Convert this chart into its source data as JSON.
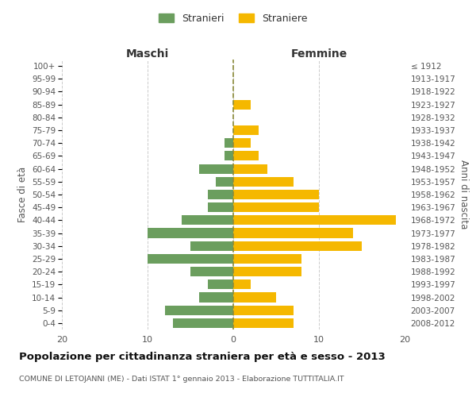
{
  "age_groups": [
    "0-4",
    "5-9",
    "10-14",
    "15-19",
    "20-24",
    "25-29",
    "30-34",
    "35-39",
    "40-44",
    "45-49",
    "50-54",
    "55-59",
    "60-64",
    "65-69",
    "70-74",
    "75-79",
    "80-84",
    "85-89",
    "90-94",
    "95-99",
    "100+"
  ],
  "birth_years": [
    "2008-2012",
    "2003-2007",
    "1998-2002",
    "1993-1997",
    "1988-1992",
    "1983-1987",
    "1978-1982",
    "1973-1977",
    "1968-1972",
    "1963-1967",
    "1958-1962",
    "1953-1957",
    "1948-1952",
    "1943-1947",
    "1938-1942",
    "1933-1937",
    "1928-1932",
    "1923-1927",
    "1918-1922",
    "1913-1917",
    "≤ 1912"
  ],
  "maschi": [
    7,
    8,
    4,
    3,
    5,
    10,
    5,
    10,
    6,
    3,
    3,
    2,
    4,
    1,
    1,
    0,
    0,
    0,
    0,
    0,
    0
  ],
  "femmine": [
    7,
    7,
    5,
    2,
    8,
    8,
    15,
    14,
    19,
    10,
    10,
    7,
    4,
    3,
    2,
    3,
    0,
    2,
    0,
    0,
    0
  ],
  "maschi_color": "#6b9e5e",
  "femmine_color": "#f5b800",
  "background_color": "#ffffff",
  "grid_color": "#cccccc",
  "title": "Popolazione per cittadinanza straniera per età e sesso - 2013",
  "subtitle": "COMUNE DI LETOJANNI (ME) - Dati ISTAT 1° gennaio 2013 - Elaborazione TUTTITALIA.IT",
  "header_left": "Maschi",
  "header_right": "Femmine",
  "ylabel_left": "Fasce di età",
  "ylabel_right": "Anni di nascita",
  "legend_stranieri": "Stranieri",
  "legend_straniere": "Straniere",
  "xlim": 20,
  "tick_color": "#555555",
  "dashed_line_color": "#8b8b3a"
}
